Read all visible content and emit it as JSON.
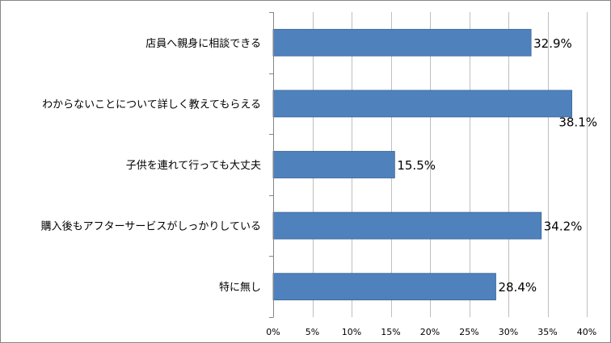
{
  "chart_data": {
    "type": "bar",
    "orientation": "horizontal",
    "categories": [
      "店員へ親身に相談できる",
      "わからないことについて詳しく教えてもらえる",
      "子供を連れて行っても大丈夫",
      "購入後もアフターサービスがしっかりしている",
      "特に無し"
    ],
    "values": [
      32.9,
      38.1,
      15.5,
      34.2,
      28.4
    ],
    "data_labels": [
      "32.9%",
      "38.1%",
      "15.5%",
      "34.2%",
      "28.4%"
    ],
    "xlim": [
      0,
      40
    ],
    "x_ticks": [
      0,
      5,
      10,
      15,
      20,
      25,
      30,
      35,
      40
    ],
    "x_tick_labels": [
      "0%",
      "5%",
      "10%",
      "15%",
      "20%",
      "25%",
      "30%",
      "35%",
      "40%"
    ],
    "grid": "vertical",
    "legend": "none",
    "bar_color": "#4F81BD",
    "bar_border_color": "#3A6595",
    "grid_color": "#BFBFBF"
  }
}
